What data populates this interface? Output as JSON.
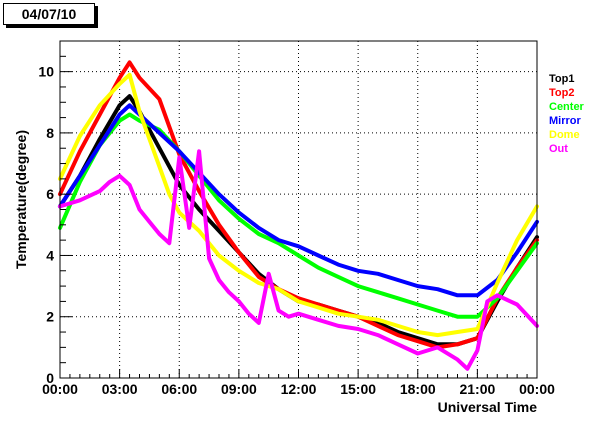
{
  "header": {
    "date_label": "04/07/10"
  },
  "chart_data": {
    "type": "line",
    "title": "04/07/10",
    "xlabel": "Universal Time",
    "ylabel": "Temperature(degree)",
    "xlim": [
      0,
      24
    ],
    "ylim": [
      0,
      11
    ],
    "x_ticks": [
      {
        "v": 0,
        "label": "00:00"
      },
      {
        "v": 3,
        "label": "03:00"
      },
      {
        "v": 6,
        "label": "06:00"
      },
      {
        "v": 9,
        "label": "09:00"
      },
      {
        "v": 12,
        "label": "12:00"
      },
      {
        "v": 15,
        "label": "15:00"
      },
      {
        "v": 18,
        "label": "18:00"
      },
      {
        "v": 21,
        "label": "21:00"
      },
      {
        "v": 24,
        "label": "00:00"
      }
    ],
    "y_ticks": [
      {
        "v": 0,
        "label": "0"
      },
      {
        "v": 2,
        "label": "2"
      },
      {
        "v": 4,
        "label": "4"
      },
      {
        "v": 6,
        "label": "6"
      },
      {
        "v": 8,
        "label": "8"
      },
      {
        "v": 10,
        "label": "10"
      }
    ],
    "grid": true,
    "legend_position": "right",
    "series": [
      {
        "name": "Top1",
        "color": "#000000",
        "x": [
          0,
          1,
          2,
          3,
          3.5,
          4,
          5,
          6,
          7,
          8,
          9,
          10,
          11,
          12,
          13,
          14,
          15,
          16,
          17,
          18,
          19,
          20,
          21,
          22,
          23,
          24
        ],
        "values": [
          5.6,
          6.6,
          7.8,
          8.9,
          9.2,
          8.7,
          7.5,
          6.3,
          5.5,
          4.8,
          4.1,
          3.4,
          2.9,
          2.5,
          2.4,
          2.2,
          2.0,
          1.8,
          1.5,
          1.3,
          1.1,
          1.1,
          1.3,
          2.5,
          3.6,
          4.6
        ]
      },
      {
        "name": "Top2",
        "color": "#ff0000",
        "x": [
          0,
          1,
          2,
          3,
          3.5,
          4,
          5,
          6,
          7,
          8,
          9,
          10,
          11,
          12,
          13,
          14,
          15,
          16,
          17,
          18,
          19,
          20,
          21,
          22,
          23,
          24
        ],
        "values": [
          6.0,
          7.4,
          8.6,
          9.8,
          10.3,
          9.8,
          9.1,
          7.3,
          6.1,
          5.0,
          4.1,
          3.3,
          2.9,
          2.6,
          2.4,
          2.2,
          2.0,
          1.7,
          1.4,
          1.2,
          1.0,
          1.1,
          1.3,
          2.6,
          3.6,
          4.5
        ]
      },
      {
        "name": "Center",
        "color": "#00ff00",
        "x": [
          0,
          1,
          2,
          3,
          3.5,
          4,
          5,
          6,
          7,
          8,
          9,
          10,
          11,
          12,
          13,
          14,
          15,
          16,
          17,
          18,
          19,
          20,
          21,
          22,
          23,
          24
        ],
        "values": [
          4.9,
          6.4,
          7.6,
          8.4,
          8.6,
          8.4,
          8.1,
          7.4,
          6.6,
          5.8,
          5.2,
          4.7,
          4.4,
          4.0,
          3.6,
          3.3,
          3.0,
          2.8,
          2.6,
          2.4,
          2.2,
          2.0,
          2.0,
          2.6,
          3.5,
          4.4
        ]
      },
      {
        "name": "Mirror",
        "color": "#0000ff",
        "x": [
          0,
          1,
          2,
          3,
          3.5,
          4,
          5,
          6,
          7,
          8,
          9,
          10,
          11,
          12,
          13,
          14,
          15,
          16,
          17,
          18,
          19,
          20,
          21,
          22,
          23,
          24
        ],
        "values": [
          5.6,
          6.6,
          7.6,
          8.6,
          8.9,
          8.6,
          8.0,
          7.4,
          6.7,
          6.0,
          5.4,
          4.9,
          4.5,
          4.3,
          4.0,
          3.7,
          3.5,
          3.4,
          3.2,
          3.0,
          2.9,
          2.7,
          2.7,
          3.2,
          4.1,
          5.1
        ]
      },
      {
        "name": "Dome",
        "color": "#ffff00",
        "x": [
          0,
          1,
          2,
          3,
          3.5,
          4,
          4.5,
          5,
          5.5,
          6,
          7,
          8,
          9,
          10,
          11,
          12,
          13,
          14,
          15,
          16,
          17,
          18,
          19,
          20,
          21,
          22,
          23,
          24
        ],
        "values": [
          6.5,
          7.9,
          8.9,
          9.6,
          9.9,
          8.7,
          7.8,
          6.9,
          6.0,
          5.4,
          4.8,
          4.0,
          3.5,
          3.1,
          2.9,
          2.5,
          2.3,
          2.1,
          2.0,
          1.9,
          1.7,
          1.5,
          1.4,
          1.5,
          1.6,
          3.1,
          4.5,
          5.6
        ]
      },
      {
        "name": "Out",
        "color": "#ff00ff",
        "x": [
          0,
          1,
          2,
          2.5,
          3,
          3.5,
          4,
          4.5,
          5,
          5.5,
          6,
          6.5,
          7,
          7.5,
          8,
          8.5,
          9,
          9.5,
          10,
          10.5,
          11,
          11.5,
          12,
          13,
          14,
          15,
          16,
          17,
          18,
          19,
          20,
          20.5,
          21,
          21.5,
          22,
          23,
          24
        ],
        "values": [
          5.6,
          5.8,
          6.1,
          6.4,
          6.6,
          6.3,
          5.5,
          5.1,
          4.7,
          4.4,
          7.2,
          4.9,
          7.4,
          3.9,
          3.2,
          2.8,
          2.5,
          2.1,
          1.8,
          3.4,
          2.2,
          2.0,
          2.1,
          1.9,
          1.7,
          1.6,
          1.4,
          1.1,
          0.8,
          1.0,
          0.6,
          0.3,
          0.9,
          2.5,
          2.7,
          2.4,
          1.7
        ]
      }
    ]
  }
}
